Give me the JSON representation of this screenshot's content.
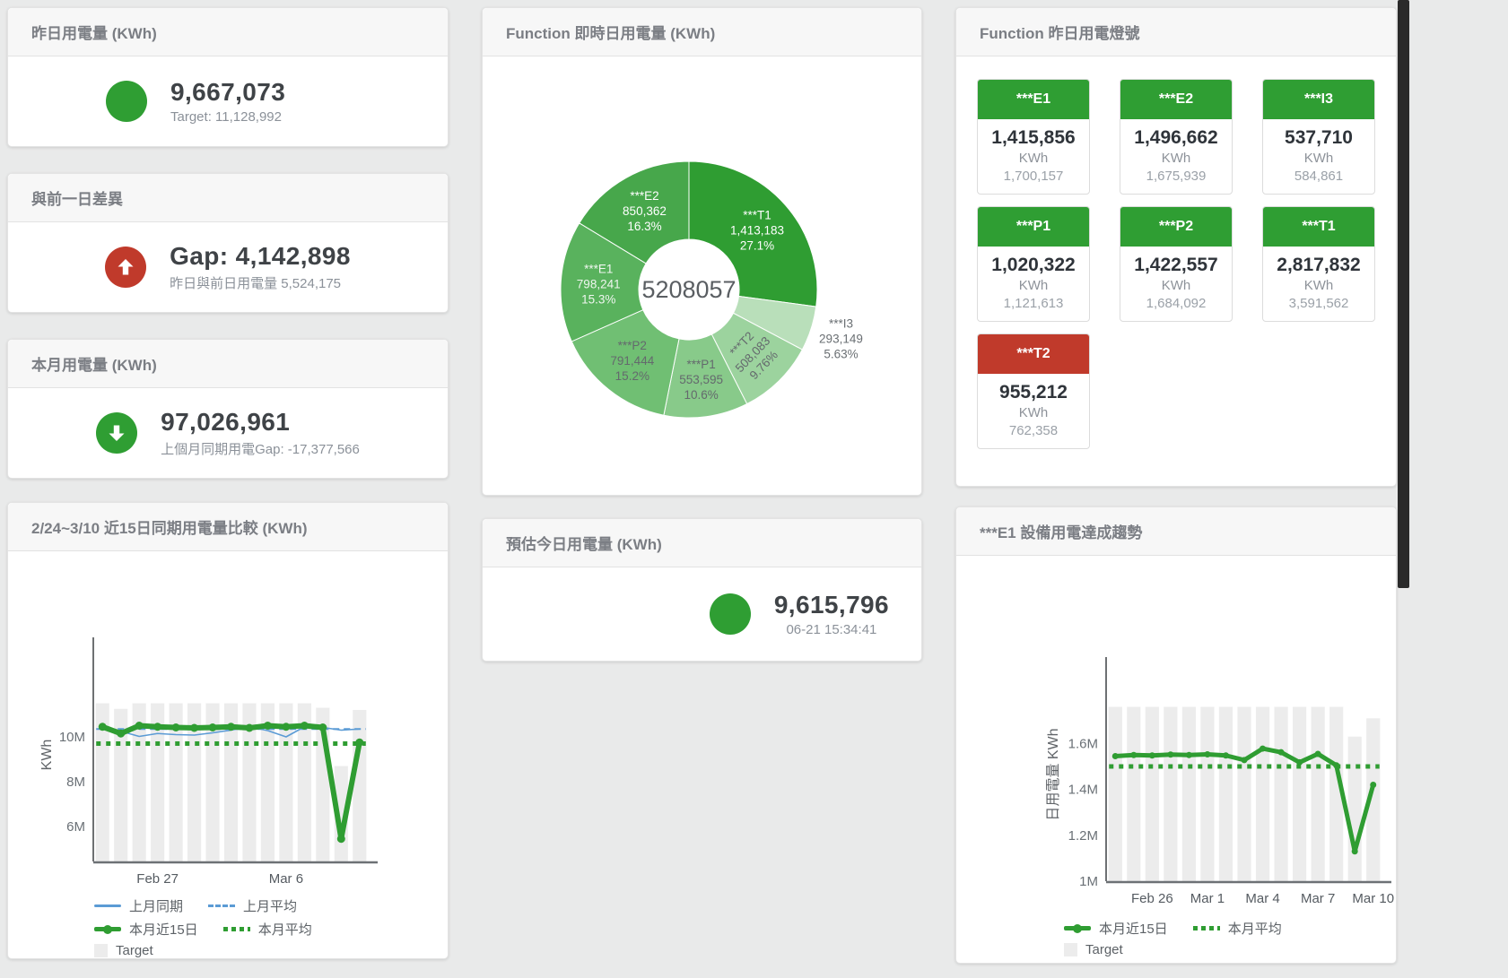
{
  "cards": {
    "yesterday": {
      "title": "昨日用電量 (KWh)",
      "value": "9,667,073",
      "sub": "Target: 11,128,992"
    },
    "day_gap": {
      "title": "與前一日差異",
      "value": "Gap: 4,142,898",
      "sub": "昨日與前日用電量 5,524,175"
    },
    "month": {
      "title": "本月用電量 (KWh)",
      "value": "97,026,961",
      "sub": "上個月同期用電Gap: -17,377,566"
    },
    "realtime_donut": {
      "title": "Function 即時日用電量 (KWh)"
    },
    "estimate": {
      "title": "預估今日用電量 (KWh)",
      "value": "9,615,796",
      "sub": "06-21 15:34:41"
    },
    "lights": {
      "title": "Function 昨日用電燈號",
      "unit": "KWh",
      "tiles": [
        {
          "label": "***E1",
          "value": "1,415,856",
          "target": "1,700,157",
          "status": "green"
        },
        {
          "label": "***E2",
          "value": "1,496,662",
          "target": "1,675,939",
          "status": "green"
        },
        {
          "label": "***I3",
          "value": "537,710",
          "target": "584,861",
          "status": "green"
        },
        {
          "label": "***P1",
          "value": "1,020,322",
          "target": "1,121,613",
          "status": "green"
        },
        {
          "label": "***P2",
          "value": "1,422,557",
          "target": "1,684,092",
          "status": "green"
        },
        {
          "label": "***T1",
          "value": "2,817,832",
          "target": "3,591,562",
          "status": "green"
        },
        {
          "label": "***T2",
          "value": "955,212",
          "target": "762,358",
          "status": "red"
        }
      ]
    },
    "compare": {
      "title": "2/24~3/10 近15日同期用電量比較 (KWh)"
    },
    "e1_trend": {
      "title": "***E1 設備用電達成趨勢"
    }
  },
  "colors": {
    "green": "#2f9e33",
    "red": "#c03a2b",
    "blue": "#5b9bd5",
    "target_bar": "#ececec"
  },
  "chart_data": [
    {
      "id": "donut",
      "type": "pie",
      "title": "Function 即時日用電量 (KWh)",
      "center_total": "5208057",
      "slices": [
        {
          "name": "***T1",
          "value": 1413183,
          "pct": 27.1,
          "pct_label": "27.1%",
          "color": "#2f9d32",
          "text": "#ffffff"
        },
        {
          "name": "***I3",
          "value": 293149,
          "pct": 5.63,
          "pct_label": "5.63%",
          "color": "#b9dfba",
          "text": "#6a6f73",
          "outside": true
        },
        {
          "name": "***T2",
          "value": 508083,
          "pct": 9.76,
          "pct_label": "9.76%",
          "color": "#9cd39e",
          "text": "#64696d",
          "rotate": -46
        },
        {
          "name": "***P1",
          "value": 553595,
          "pct": 10.6,
          "pct_label": "10.6%",
          "color": "#88ca8a",
          "text": "#64696d"
        },
        {
          "name": "***P2",
          "value": 791444,
          "pct": 15.2,
          "pct_label": "15.2%",
          "color": "#70bf73",
          "text": "#64696d"
        },
        {
          "name": "***E1",
          "value": 798241,
          "pct": 15.3,
          "pct_label": "15.3%",
          "color": "#59b25d",
          "text": "#eff6ef"
        },
        {
          "name": "***E2",
          "value": 850362,
          "pct": 16.3,
          "pct_label": "16.3%",
          "color": "#47a74b",
          "text": "#ffffff"
        }
      ]
    },
    {
      "id": "compare",
      "type": "line+bar",
      "title": "2/24~3/10 近15日同期用電量比較 (KWh)",
      "ylabel": "KWh",
      "ylim": [
        4.44,
        13.96
      ],
      "yticks": [
        {
          "v": 6,
          "label": "6M"
        },
        {
          "v": 8,
          "label": "8M"
        },
        {
          "v": 10,
          "label": "10M"
        }
      ],
      "x_count": 15,
      "xticks": [
        {
          "i": 3,
          "label": "Feb 27"
        },
        {
          "i": 10,
          "label": "Mar 6"
        }
      ],
      "series": [
        {
          "name": "Target",
          "type": "bar",
          "color": "#ececec",
          "values": [
            11.5,
            11.25,
            11.5,
            11.5,
            11.5,
            11.5,
            11.5,
            11.5,
            11.5,
            11.5,
            11.5,
            11.5,
            11.3,
            8.7,
            11.2
          ]
        },
        {
          "name": "上月平均",
          "type": "dash",
          "color": "#5b9bd5",
          "width": 2,
          "values": 10.35
        },
        {
          "name": "本月平均",
          "type": "dots",
          "color": "#2f9d32",
          "width": 5,
          "values": 9.7
        },
        {
          "name": "上月同期",
          "type": "line",
          "color": "#5b9bd5",
          "width": 1.6,
          "values": [
            10.5,
            10.25,
            10.02,
            10.15,
            10.1,
            10.08,
            10.18,
            10.3,
            10.45,
            10.28,
            10.0,
            10.45,
            10.42,
            10.3,
            10.35
          ]
        },
        {
          "name": "本月近15日",
          "type": "line",
          "color": "#2f9d32",
          "width": 6,
          "marker": 4.5,
          "values": [
            10.45,
            10.15,
            10.5,
            10.45,
            10.42,
            10.4,
            10.42,
            10.45,
            10.4,
            10.5,
            10.45,
            10.5,
            10.42,
            5.45,
            9.75
          ]
        }
      ],
      "legend_rows": [
        [
          "上月同期",
          "上月平均"
        ],
        [
          "本月近15日",
          "本月平均"
        ],
        [
          "Target"
        ]
      ]
    },
    {
      "id": "e1trend",
      "type": "line+bar",
      "title": "***E1 設備用電達成趨勢",
      "ylabel": "日用電量 KWh",
      "ylim": [
        1.0,
        1.93
      ],
      "yticks": [
        {
          "v": 1,
          "label": "1M"
        },
        {
          "v": 1.2,
          "label": "1.2M"
        },
        {
          "v": 1.4,
          "label": "1.4M"
        },
        {
          "v": 1.6,
          "label": "1.6M"
        }
      ],
      "x_count": 15,
      "xticks": [
        {
          "i": 2,
          "label": "Feb 26"
        },
        {
          "i": 5,
          "label": "Mar 1"
        },
        {
          "i": 8,
          "label": "Mar 4"
        },
        {
          "i": 11,
          "label": "Mar 7"
        },
        {
          "i": 14,
          "label": "Mar 10"
        }
      ],
      "series": [
        {
          "name": "Target",
          "type": "bar",
          "color": "#ececec",
          "values": [
            1.76,
            1.76,
            1.76,
            1.76,
            1.76,
            1.76,
            1.76,
            1.76,
            1.76,
            1.76,
            1.76,
            1.76,
            1.76,
            1.63,
            1.71
          ]
        },
        {
          "name": "本月平均",
          "type": "dots",
          "color": "#2f9d32",
          "width": 5,
          "values": 1.5
        },
        {
          "name": "本月近15日",
          "type": "line",
          "color": "#2f9d32",
          "width": 5,
          "marker": 3.5,
          "values": [
            1.545,
            1.55,
            1.548,
            1.552,
            1.55,
            1.553,
            1.548,
            1.528,
            1.578,
            1.562,
            1.518,
            1.555,
            1.505,
            1.13,
            1.42
          ]
        }
      ],
      "legend_rows": [
        [
          "本月近15日",
          "本月平均"
        ],
        [
          "Target"
        ]
      ]
    }
  ]
}
